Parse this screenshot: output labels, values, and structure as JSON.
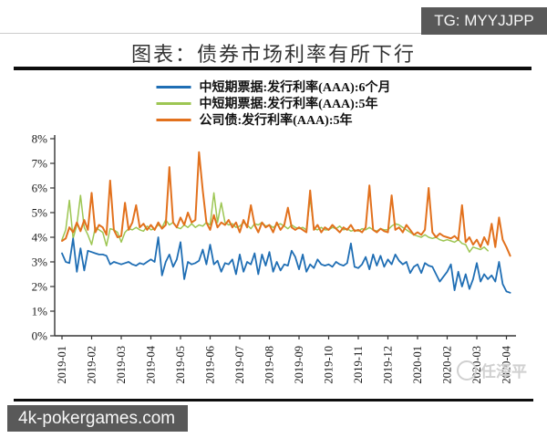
{
  "badges": {
    "top_right": "TG: MYYJJPP",
    "bottom_left": "4k-pokergames.com"
  },
  "watermark": "任泽平",
  "colors": {
    "badge_bg": "#595959",
    "title_text": "#333333",
    "axis": "#333333",
    "divider": "#0d0d0d",
    "watermark": "#d0d0d0"
  },
  "chart_data": {
    "type": "line",
    "title": "图表：债券市场利率有所下行",
    "xlabel": "",
    "ylabel": "",
    "ylim": [
      0,
      8
    ],
    "grid": false,
    "legend_position": "top-center",
    "y_tick_labels": [
      "0%",
      "1%",
      "2%",
      "3%",
      "4%",
      "5%",
      "6%",
      "7%",
      "8%"
    ],
    "x_tick_labels": [
      "2019-01",
      "2019-02",
      "2019-03",
      "2019-04",
      "2019-05",
      "2019-06",
      "2019-07",
      "2019-08",
      "2019-09",
      "2019-10",
      "2019-11",
      "2019-12",
      "2020-01",
      "2020-02",
      "2020-03",
      "2020-04"
    ],
    "x_unit": "month",
    "series": [
      {
        "name": "中短期票据:发行利率(AAA):6个月",
        "color": "#1f6eb4",
        "end_month": 15.125,
        "values": [
          3.35,
          3.0,
          2.95,
          3.95,
          2.6,
          3.55,
          2.65,
          3.45,
          3.4,
          3.35,
          3.3,
          3.3,
          3.25,
          2.9,
          3.0,
          2.95,
          2.9,
          2.95,
          3.0,
          2.9,
          2.85,
          2.95,
          2.9,
          3.0,
          3.1,
          3.0,
          4.0,
          2.45,
          3.0,
          3.3,
          2.8,
          3.1,
          3.8,
          2.3,
          3.0,
          2.9,
          2.95,
          3.05,
          3.5,
          2.9,
          3.7,
          2.9,
          3.05,
          2.6,
          2.95,
          2.9,
          3.1,
          2.5,
          3.3,
          2.6,
          3.0,
          2.9,
          3.35,
          2.5,
          3.3,
          2.85,
          3.4,
          2.6,
          3.0,
          2.65,
          2.9,
          2.85,
          3.45,
          3.2,
          2.7,
          3.3,
          2.6,
          2.9,
          2.75,
          3.1,
          2.9,
          2.85,
          2.9,
          2.8,
          3.0,
          2.9,
          2.85,
          2.95,
          3.75,
          2.8,
          2.75,
          2.9,
          3.2,
          2.7,
          3.3,
          2.85,
          3.25,
          2.8,
          3.1,
          2.9,
          3.3,
          3.05,
          2.9,
          3.0,
          2.55,
          2.8,
          2.9,
          2.55,
          2.95,
          2.85,
          2.8,
          2.5,
          2.2,
          2.4,
          2.6,
          2.9,
          1.85,
          2.6,
          2.0,
          2.5,
          1.9,
          2.3,
          2.95,
          2.2,
          2.5,
          2.3,
          2.45,
          2.2,
          3.0,
          2.1,
          1.8,
          1.75
        ]
      },
      {
        "name": "中短期票据:发行利率(AAA):5年",
        "color": "#9dc653",
        "end_month": 14.375,
        "values": [
          3.9,
          4.3,
          5.5,
          3.95,
          4.5,
          5.7,
          4.4,
          4.1,
          3.7,
          4.4,
          4.3,
          4.2,
          3.65,
          4.35,
          4.3,
          4.2,
          3.8,
          4.2,
          4.35,
          4.3,
          4.4,
          4.3,
          4.25,
          4.45,
          4.3,
          4.35,
          4.5,
          4.4,
          4.7,
          4.5,
          4.6,
          4.4,
          4.35,
          4.5,
          4.4,
          4.55,
          4.4,
          4.5,
          4.45,
          4.6,
          4.5,
          5.8,
          4.6,
          5.4,
          4.6,
          4.5,
          4.55,
          4.4,
          4.45,
          4.6,
          4.5,
          4.35,
          4.55,
          4.5,
          4.6,
          4.45,
          4.5,
          4.4,
          4.5,
          4.55,
          4.45,
          4.35,
          4.5,
          4.4,
          4.35,
          4.4,
          4.3,
          5.6,
          4.35,
          4.3,
          4.4,
          4.3,
          4.3,
          4.4,
          4.35,
          4.45,
          4.3,
          4.35,
          4.25,
          4.3,
          4.25,
          4.35,
          4.3,
          4.4,
          4.3,
          4.25,
          4.35,
          4.3,
          4.3,
          4.45,
          4.55,
          4.5,
          4.4,
          4.3,
          4.2,
          4.1,
          4.05,
          4.0,
          4.1,
          4.0,
          3.95,
          4.0,
          3.9,
          3.85,
          3.9,
          3.85,
          3.8,
          3.9,
          3.75,
          3.7,
          3.4,
          3.6,
          3.55,
          3.5,
          3.6,
          3.45
        ]
      },
      {
        "name": "公司债:发行利率(AAA):5年",
        "color": "#e2711d",
        "end_month": 15.125,
        "values": [
          3.85,
          3.95,
          4.4,
          4.2,
          4.6,
          4.25,
          4.7,
          4.3,
          5.8,
          4.2,
          4.5,
          4.4,
          4.1,
          6.3,
          4.3,
          4.0,
          4.05,
          5.4,
          4.3,
          4.6,
          5.3,
          4.4,
          4.55,
          4.3,
          4.5,
          4.3,
          4.6,
          4.35,
          4.5,
          6.85,
          4.6,
          4.4,
          4.8,
          4.5,
          5.0,
          4.6,
          4.7,
          7.45,
          5.9,
          4.6,
          4.3,
          4.9,
          4.4,
          4.6,
          4.5,
          4.7,
          4.4,
          4.6,
          4.2,
          4.7,
          4.4,
          5.3,
          4.5,
          4.2,
          4.6,
          4.4,
          4.5,
          4.2,
          4.6,
          4.3,
          4.5,
          5.2,
          4.4,
          4.3,
          4.4,
          4.3,
          4.2,
          5.9,
          4.3,
          4.5,
          4.2,
          4.4,
          4.3,
          4.5,
          4.35,
          4.2,
          4.4,
          4.3,
          4.5,
          4.25,
          4.3,
          4.2,
          4.4,
          6.1,
          4.3,
          4.2,
          4.35,
          4.25,
          4.2,
          5.7,
          4.3,
          4.4,
          4.2,
          4.5,
          4.3,
          4.1,
          4.2,
          4.1,
          4.3,
          6.0,
          4.2,
          4.0,
          4.15,
          4.05,
          4.0,
          3.95,
          4.05,
          3.9,
          5.3,
          3.8,
          4.0,
          3.7,
          3.9,
          3.6,
          4.0,
          3.7,
          4.55,
          3.6,
          4.8,
          3.9,
          3.6,
          3.25
        ]
      }
    ]
  }
}
